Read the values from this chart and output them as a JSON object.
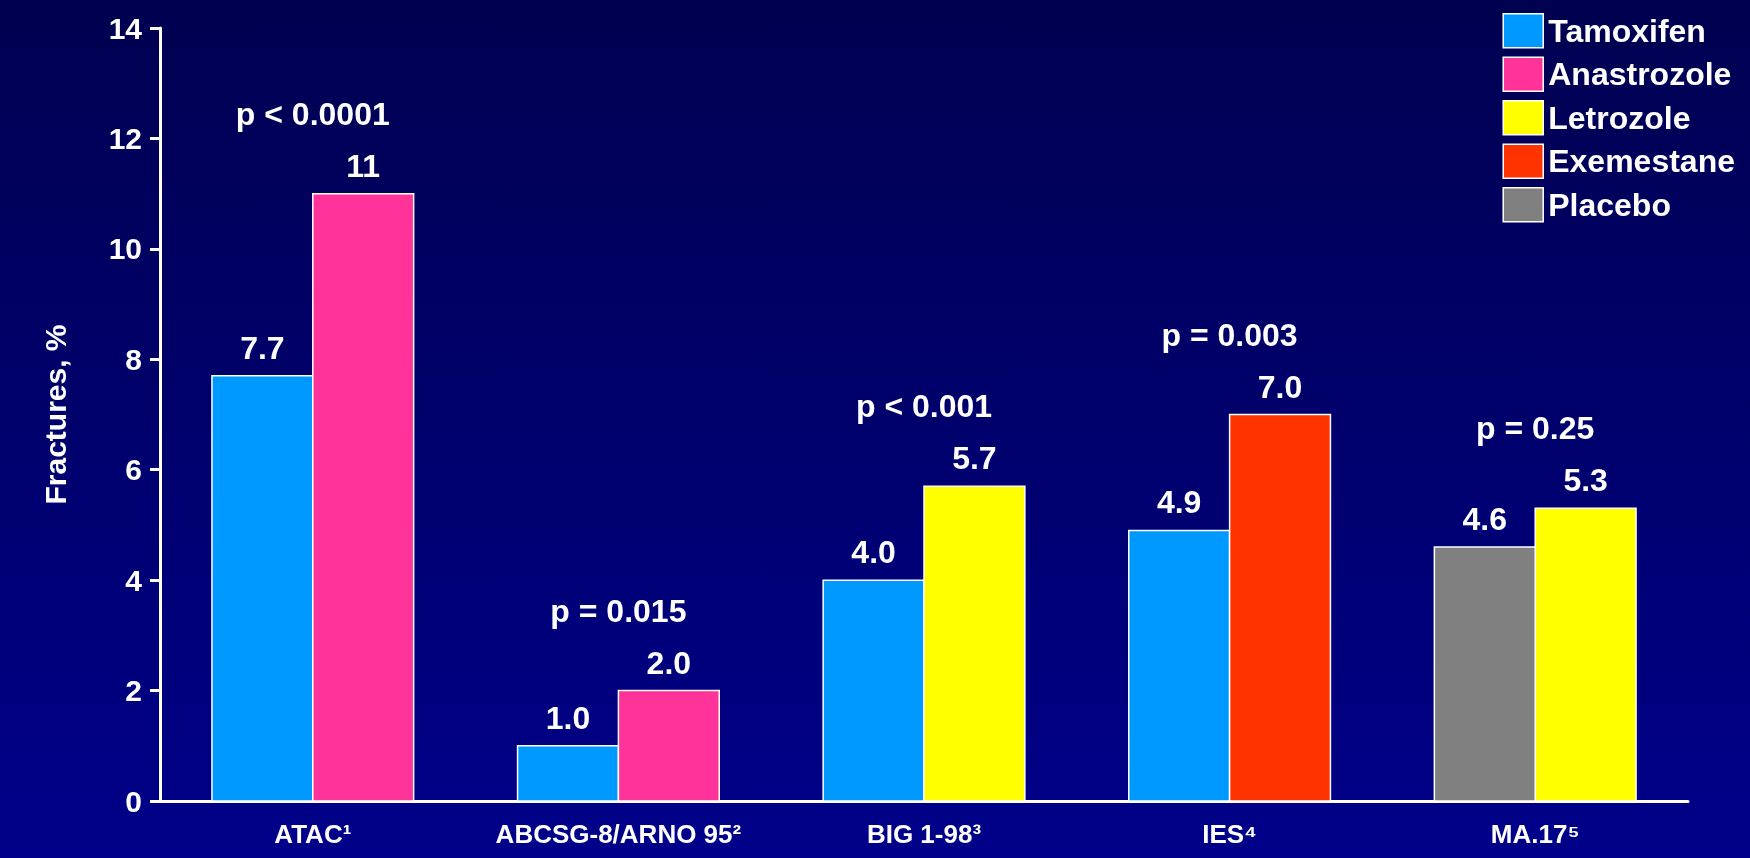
{
  "chart_data": {
    "type": "bar",
    "ylabel": "Fractures, %",
    "categories": [
      "ATAC¹",
      "ABCSG-8/ARNO 95²",
      "BIG 1-98³",
      "IES⁴",
      "MA.17⁵"
    ],
    "series": [
      {
        "name": "Tamoxifen",
        "color": "#0099ff",
        "values": [
          7.7,
          1.0,
          4.0,
          4.9,
          null
        ],
        "value_labels": [
          "7.7",
          "1.0",
          "4.0",
          "4.9",
          null
        ]
      },
      {
        "name": "Anastrozole",
        "color": "#ff3399",
        "values": [
          11,
          2.0,
          null,
          null,
          null
        ],
        "value_labels": [
          "11",
          "2.0",
          null,
          null,
          null
        ]
      },
      {
        "name": "Letrozole",
        "color": "#ffff00",
        "values": [
          null,
          null,
          5.7,
          null,
          5.3
        ],
        "value_labels": [
          null,
          null,
          "5.7",
          null,
          "5.3"
        ]
      },
      {
        "name": "Exemestane",
        "color": "#ff3300",
        "values": [
          null,
          null,
          null,
          7.0,
          null
        ],
        "value_labels": [
          null,
          null,
          null,
          "7.0",
          null
        ]
      },
      {
        "name": "Placebo",
        "color": "#808080",
        "values": [
          null,
          null,
          null,
          null,
          4.6
        ],
        "value_labels": [
          null,
          null,
          null,
          null,
          "4.6"
        ]
      }
    ],
    "ylim": [
      0,
      14
    ],
    "yticks": [
      0,
      2,
      4,
      6,
      8,
      10,
      12,
      14
    ],
    "grid": false,
    "legend": "top right",
    "annotations": [
      "p < 0.0001",
      "p = 0.015",
      "p < 0.001",
      "p = 0.003",
      "p = 0.25"
    ]
  }
}
